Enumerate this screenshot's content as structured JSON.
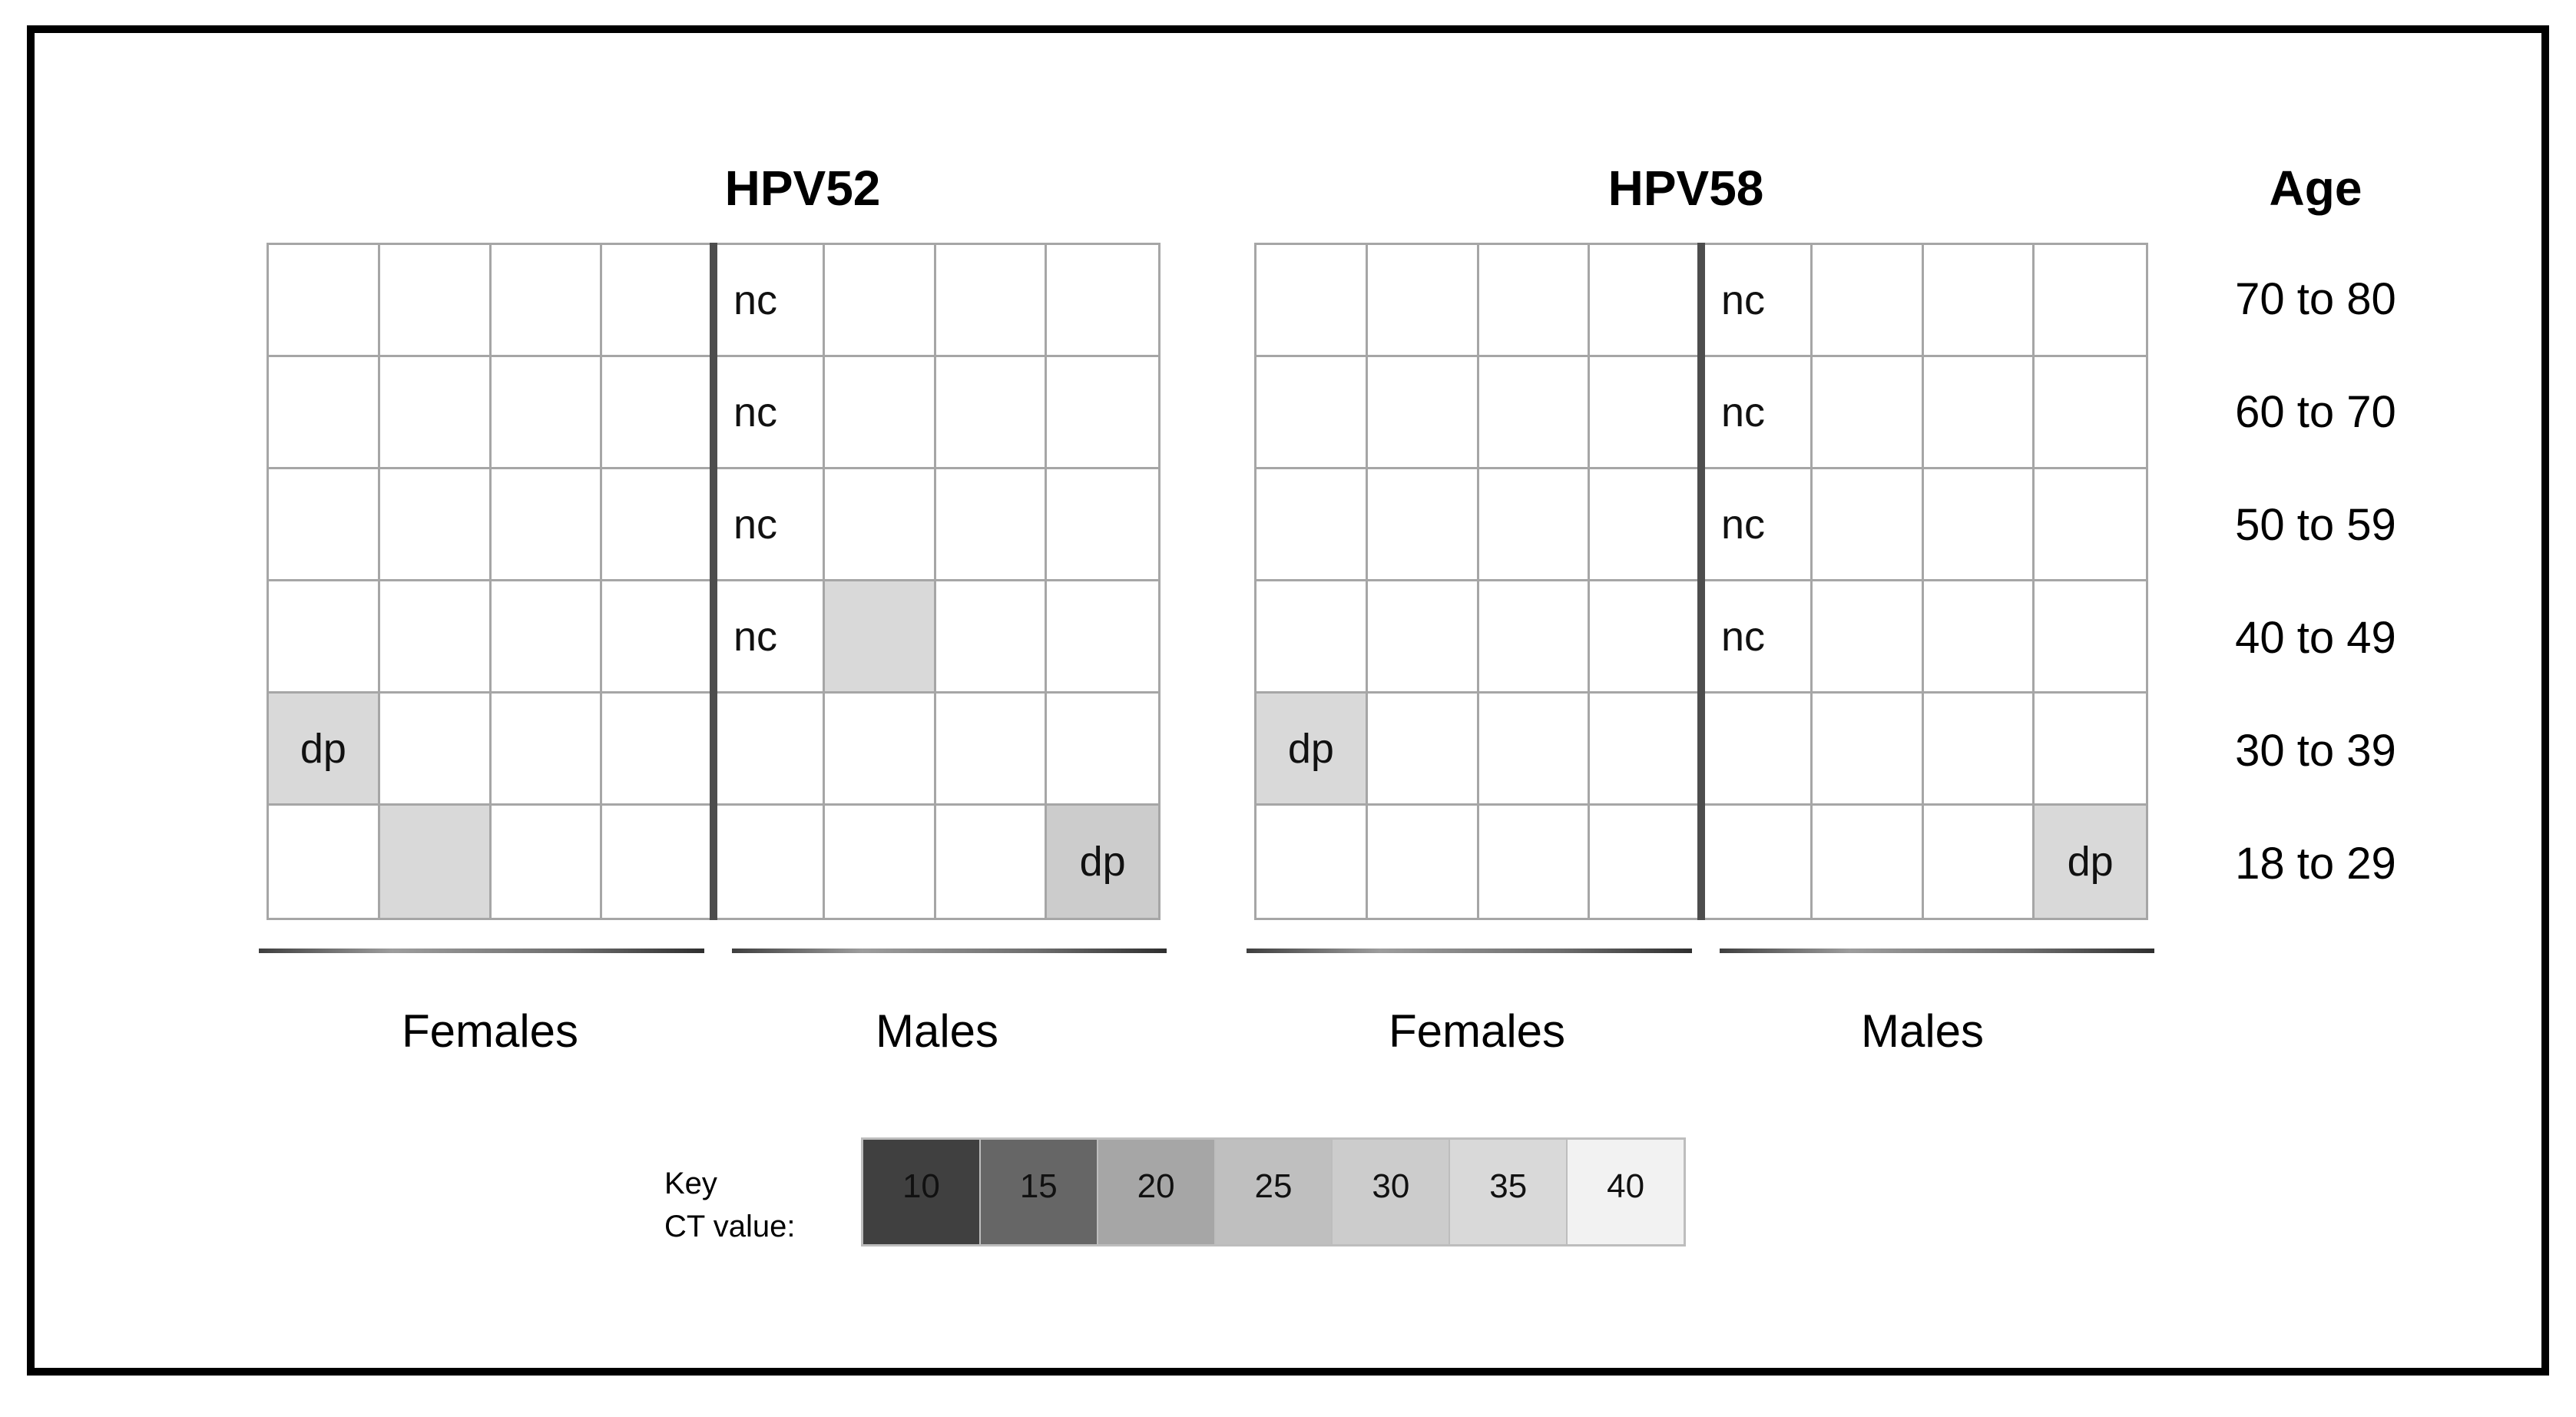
{
  "chart_data": {
    "type": "heatmap",
    "panels": [
      {
        "title": "HPV52",
        "female_label": "Females",
        "male_label": "Males",
        "rows": [
          "70 to 80",
          "60 to 70",
          "50 to 59",
          "40 to 49",
          "30 to 39",
          "18 to 29"
        ],
        "cols_per_side": 4,
        "marked_cells": [
          {
            "age": "70 to 80",
            "side": "Males",
            "col": 1,
            "label": "nc"
          },
          {
            "age": "60 to 70",
            "side": "Males",
            "col": 1,
            "label": "nc"
          },
          {
            "age": "50 to 59",
            "side": "Males",
            "col": 1,
            "label": "nc"
          },
          {
            "age": "40 to 49",
            "side": "Males",
            "col": 1,
            "label": "nc"
          },
          {
            "age": "40 to 49",
            "side": "Males",
            "col": 2,
            "label": "",
            "ct_value": 35
          },
          {
            "age": "30 to 39",
            "side": "Females",
            "col": 1,
            "label": "dp",
            "ct_value": 35
          },
          {
            "age": "18 to 29",
            "side": "Females",
            "col": 2,
            "label": "",
            "ct_value": 35
          },
          {
            "age": "18 to 29",
            "side": "Males",
            "col": 4,
            "label": "dp",
            "ct_value": 30
          }
        ]
      },
      {
        "title": "HPV58",
        "female_label": "Females",
        "male_label": "Males",
        "rows": [
          "70 to 80",
          "60 to 70",
          "50 to 59",
          "40 to 49",
          "30 to 39",
          "18 to 29"
        ],
        "cols_per_side": 4,
        "marked_cells": [
          {
            "age": "70 to 80",
            "side": "Males",
            "col": 1,
            "label": "nc"
          },
          {
            "age": "60 to 70",
            "side": "Males",
            "col": 1,
            "label": "nc"
          },
          {
            "age": "50 to 59",
            "side": "Males",
            "col": 1,
            "label": "nc"
          },
          {
            "age": "40 to 49",
            "side": "Males",
            "col": 1,
            "label": "nc"
          },
          {
            "age": "30 to 39",
            "side": "Females",
            "col": 1,
            "label": "dp",
            "ct_value": 35
          },
          {
            "age": "18 to 29",
            "side": "Males",
            "col": 4,
            "label": "dp",
            "ct_value": 35
          }
        ]
      }
    ],
    "age_column": {
      "header": "Age",
      "groups": [
        "70 to 80",
        "60 to 70",
        "50 to 59",
        "40 to 49",
        "30 to 39",
        "18 to 29"
      ]
    },
    "key": {
      "title": "Key",
      "subtitle": "CT value:",
      "entries": [
        {
          "value": 10,
          "color": "#404040"
        },
        {
          "value": 15,
          "color": "#666666"
        },
        {
          "value": 20,
          "color": "#a6a6a6"
        },
        {
          "value": 25,
          "color": "#bfbfbf"
        },
        {
          "value": 30,
          "color": "#cccccc"
        },
        {
          "value": 35,
          "color": "#d9d9d9"
        },
        {
          "value": 40,
          "color": "#f2f2f2"
        }
      ]
    },
    "layout": {
      "grid_rows": 6,
      "grid_cols": 8,
      "legend_position": "bottom",
      "grid_line_color": "#a6a6a6",
      "divider_color": "#4d4d4d"
    }
  }
}
